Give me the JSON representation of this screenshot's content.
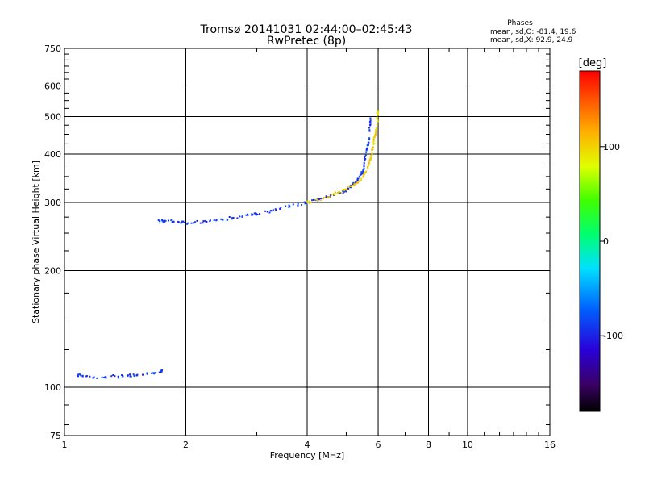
{
  "chart_data": {
    "type": "scatter",
    "title": "Tromsø 20141031 02:44:00–02:45:43",
    "subtitle": "RwPretec (8p)",
    "xlabel": "Frequency [MHz]",
    "ylabel": "Stationary phase Virtual Height [km]",
    "x_scale": "log",
    "y_scale": "log",
    "xlim": [
      1,
      16
    ],
    "ylim": [
      75,
      750
    ],
    "x_ticks": [
      1,
      2,
      4,
      6,
      8,
      10,
      16
    ],
    "x_tick_labels": [
      "1",
      "2",
      "4",
      "6",
      "8",
      "10",
      "16"
    ],
    "y_ticks": [
      75,
      100,
      200,
      300,
      400,
      500,
      600,
      750
    ],
    "y_tick_labels": [
      "75",
      "100",
      "200",
      "300",
      "400",
      "500",
      "600",
      "750"
    ],
    "grid": true,
    "legend_title": "Phases",
    "legend_lines": [
      "mean, sd,O: -81.4, 19.6",
      "mean, sd,X:  92.9, 24.9"
    ],
    "colorbar": {
      "label": "[deg]",
      "range": [
        -180,
        180
      ],
      "ticks": [
        100,
        0,
        -100
      ],
      "tick_labels": [
        "100",
        "0",
        "-100"
      ],
      "colormap": "rainbow (black-purple-blue-cyan-green-yellow-orange-red)"
    },
    "series": [
      {
        "description_trace": "O-mode F-layer trace",
        "points": [
          [
            1.7,
            270
          ],
          [
            1.8,
            268
          ],
          [
            2.0,
            266
          ],
          [
            2.3,
            268
          ],
          [
            2.7,
            275
          ],
          [
            3.0,
            280
          ],
          [
            3.5,
            292
          ],
          [
            4.0,
            300
          ],
          [
            4.5,
            310
          ],
          [
            5.0,
            322
          ],
          [
            5.3,
            340
          ],
          [
            5.5,
            360
          ],
          [
            5.6,
            400
          ],
          [
            5.7,
            440
          ],
          [
            5.75,
            500
          ]
        ],
        "phase": -90
      },
      {
        "description_trace": "X-mode F-layer trace",
        "points": [
          [
            4.0,
            300
          ],
          [
            4.5,
            310
          ],
          [
            5.0,
            325
          ],
          [
            5.4,
            340
          ],
          [
            5.6,
            360
          ],
          [
            5.75,
            390
          ],
          [
            5.85,
            430
          ],
          [
            5.95,
            470
          ],
          [
            6.0,
            520
          ]
        ],
        "phase": 100
      },
      {
        "description_trace": "E-layer trace",
        "points": [
          [
            1.05,
            108
          ],
          [
            1.2,
            106
          ],
          [
            1.4,
            107
          ],
          [
            1.6,
            108
          ],
          [
            1.75,
            110
          ]
        ],
        "phase": -90
      }
    ]
  }
}
